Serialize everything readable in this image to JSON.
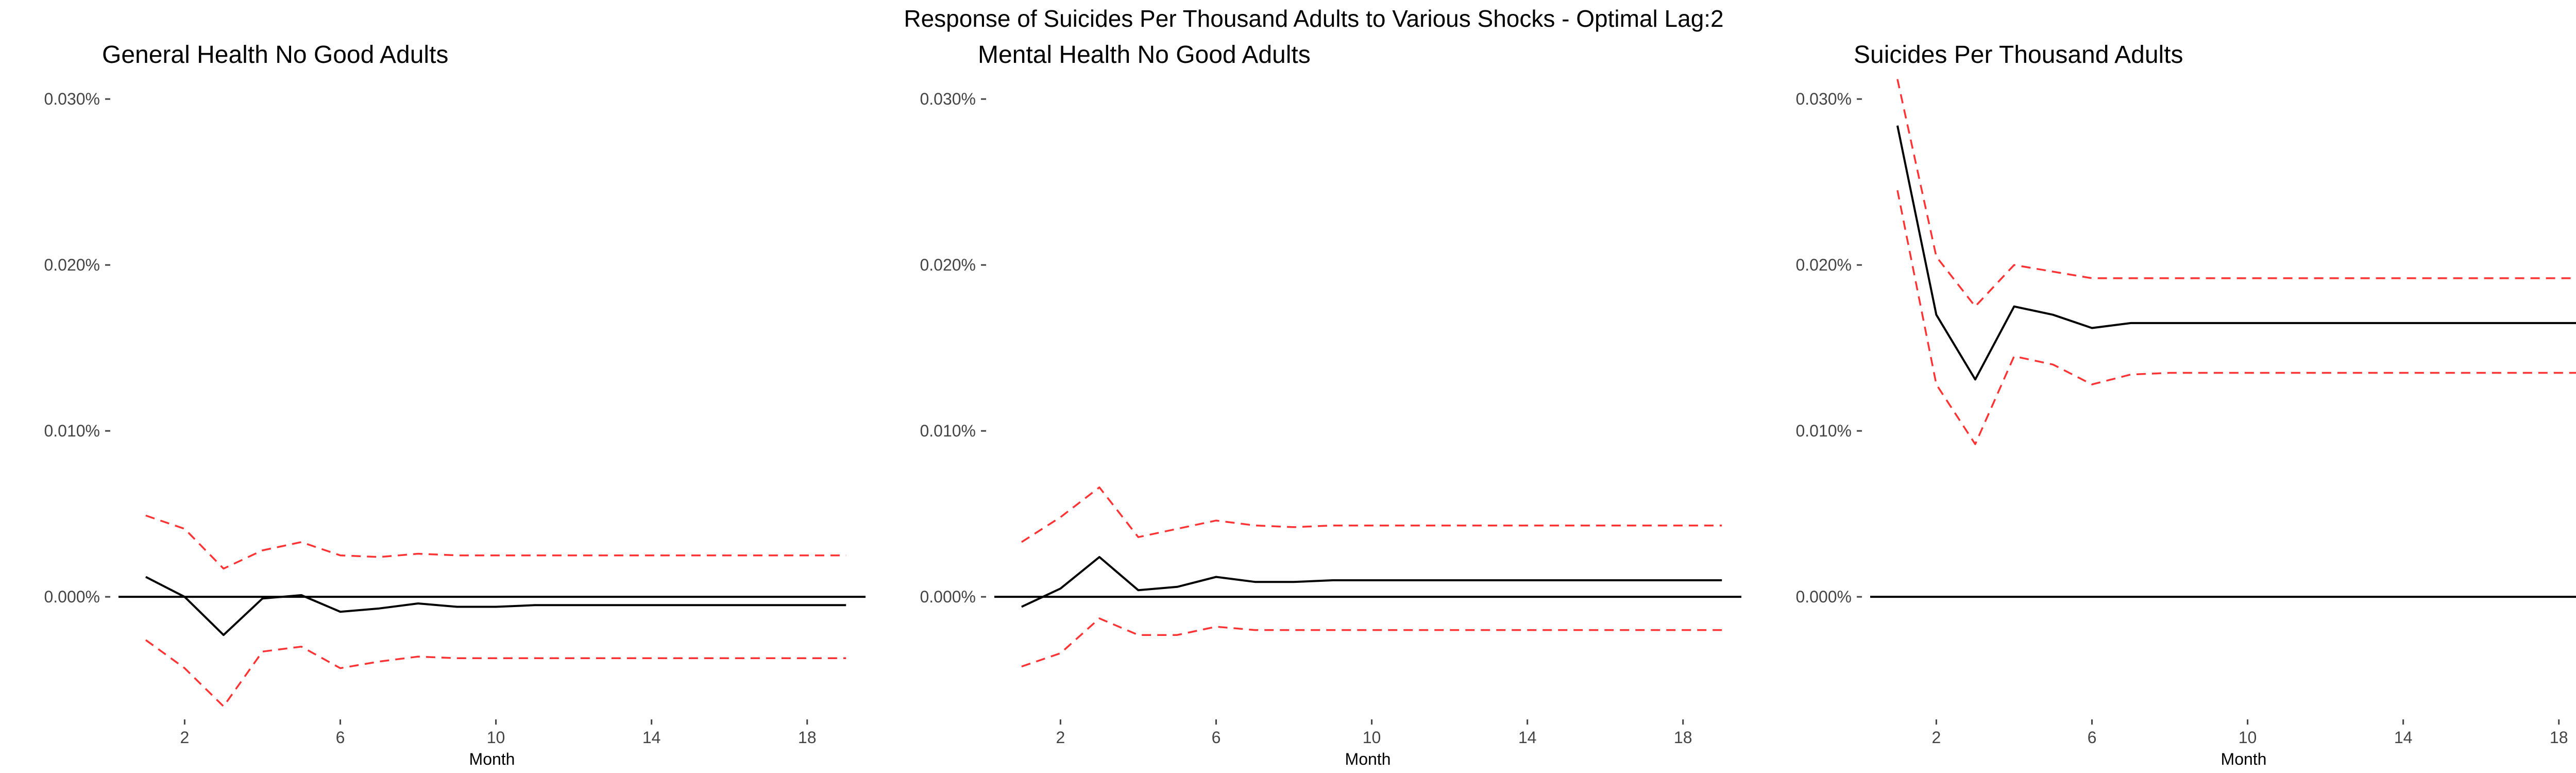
{
  "figure": {
    "title": "Response of Suicides Per Thousand Adults to Various Shocks - Optimal Lag:2"
  },
  "colors": {
    "response": "#000000",
    "ci": "#ff3333",
    "zero_line": "#000000",
    "tick": "#444444"
  },
  "chart_data": [
    {
      "type": "line",
      "title": "General Health No Good Adults",
      "xlabel": "Month",
      "ylabel": "",
      "xlim": [
        0.3,
        19.5
      ],
      "ylim": [
        -0.0072,
        0.031
      ],
      "xticks": [
        2,
        6,
        10,
        14,
        18
      ],
      "yticks": [
        0,
        0.01,
        0.02,
        0.03
      ],
      "ytick_labels": [
        "0.000%",
        "0.010%",
        "0.020%",
        "0.030%"
      ],
      "zero_line": true,
      "grid": false,
      "x": [
        1,
        2,
        3,
        4,
        5,
        6,
        7,
        8,
        9,
        10,
        11,
        12,
        13,
        14,
        15,
        16,
        17,
        18,
        19
      ],
      "series": [
        {
          "role": "response",
          "values": [
            0.0012,
            0.0,
            -0.0023,
            -0.0001,
            0.0001,
            -0.0009,
            -0.0007,
            -0.0004,
            -0.0006,
            -0.0006,
            -0.0005,
            -0.0005,
            -0.0005,
            -0.0005,
            -0.0005,
            -0.0005,
            -0.0005,
            -0.0005,
            -0.0005
          ]
        },
        {
          "role": "upper",
          "values": [
            0.0049,
            0.0041,
            0.0017,
            0.0028,
            0.0033,
            0.0025,
            0.0024,
            0.0026,
            0.0025,
            0.0025,
            0.0025,
            0.0025,
            0.0025,
            0.0025,
            0.0025,
            0.0025,
            0.0025,
            0.0025,
            0.0025
          ]
        },
        {
          "role": "lower",
          "values": [
            -0.0026,
            -0.0043,
            -0.0066,
            -0.0033,
            -0.003,
            -0.0043,
            -0.0039,
            -0.0036,
            -0.0037,
            -0.0037,
            -0.0037,
            -0.0037,
            -0.0037,
            -0.0037,
            -0.0037,
            -0.0037,
            -0.0037,
            -0.0037,
            -0.0037
          ]
        }
      ]
    },
    {
      "type": "line",
      "title": "Mental Health No Good Adults",
      "xlabel": "Month",
      "ylabel": "",
      "xlim": [
        0.3,
        19.5
      ],
      "ylim": [
        -0.0072,
        0.031
      ],
      "xticks": [
        2,
        6,
        10,
        14,
        18
      ],
      "yticks": [
        0,
        0.01,
        0.02,
        0.03
      ],
      "ytick_labels": [
        "0.000%",
        "0.010%",
        "0.020%",
        "0.030%"
      ],
      "zero_line": true,
      "grid": false,
      "x": [
        1,
        2,
        3,
        4,
        5,
        6,
        7,
        8,
        9,
        10,
        11,
        12,
        13,
        14,
        15,
        16,
        17,
        18,
        19
      ],
      "series": [
        {
          "role": "response",
          "values": [
            -0.0006,
            0.0005,
            0.0024,
            0.0004,
            0.0006,
            0.0012,
            0.0009,
            0.0009,
            0.001,
            0.001,
            0.001,
            0.001,
            0.001,
            0.001,
            0.001,
            0.001,
            0.001,
            0.001,
            0.001
          ]
        },
        {
          "role": "upper",
          "values": [
            0.0033,
            0.0048,
            0.0066,
            0.0036,
            0.0041,
            0.0046,
            0.0043,
            0.0042,
            0.0043,
            0.0043,
            0.0043,
            0.0043,
            0.0043,
            0.0043,
            0.0043,
            0.0043,
            0.0043,
            0.0043,
            0.0043
          ]
        },
        {
          "role": "lower",
          "values": [
            -0.0042,
            -0.0034,
            -0.0013,
            -0.0023,
            -0.0023,
            -0.0018,
            -0.002,
            -0.002,
            -0.002,
            -0.002,
            -0.002,
            -0.002,
            -0.002,
            -0.002,
            -0.002,
            -0.002,
            -0.002,
            -0.002,
            -0.002
          ]
        }
      ]
    },
    {
      "type": "line",
      "title": "Suicides Per Thousand Adults",
      "xlabel": "Month",
      "ylabel": "",
      "xlim": [
        0.3,
        19.5
      ],
      "ylim": [
        -0.0072,
        0.031
      ],
      "xticks": [
        2,
        6,
        10,
        14,
        18
      ],
      "yticks": [
        0,
        0.01,
        0.02,
        0.03
      ],
      "ytick_labels": [
        "0.000%",
        "0.010%",
        "0.020%",
        "0.030%"
      ],
      "zero_line": true,
      "grid": false,
      "x": [
        1,
        2,
        3,
        4,
        5,
        6,
        7,
        8,
        9,
        10,
        11,
        12,
        13,
        14,
        15,
        16,
        17,
        18,
        19
      ],
      "series": [
        {
          "role": "response",
          "values": [
            0.0284,
            0.017,
            0.0131,
            0.0175,
            0.017,
            0.0162,
            0.0165,
            0.0165,
            0.0165,
            0.0165,
            0.0165,
            0.0165,
            0.0165,
            0.0165,
            0.0165,
            0.0165,
            0.0165,
            0.0165,
            0.0165
          ]
        },
        {
          "role": "upper",
          "values": [
            0.0312,
            0.0205,
            0.0175,
            0.02,
            0.0196,
            0.0192,
            0.0192,
            0.0192,
            0.0192,
            0.0192,
            0.0192,
            0.0192,
            0.0192,
            0.0192,
            0.0192,
            0.0192,
            0.0192,
            0.0192,
            0.0192
          ]
        },
        {
          "role": "lower",
          "values": [
            0.0245,
            0.0128,
            0.0092,
            0.0145,
            0.014,
            0.0128,
            0.0134,
            0.0135,
            0.0135,
            0.0135,
            0.0135,
            0.0135,
            0.0135,
            0.0135,
            0.0135,
            0.0135,
            0.0135,
            0.0135,
            0.0135
          ]
        }
      ]
    }
  ]
}
